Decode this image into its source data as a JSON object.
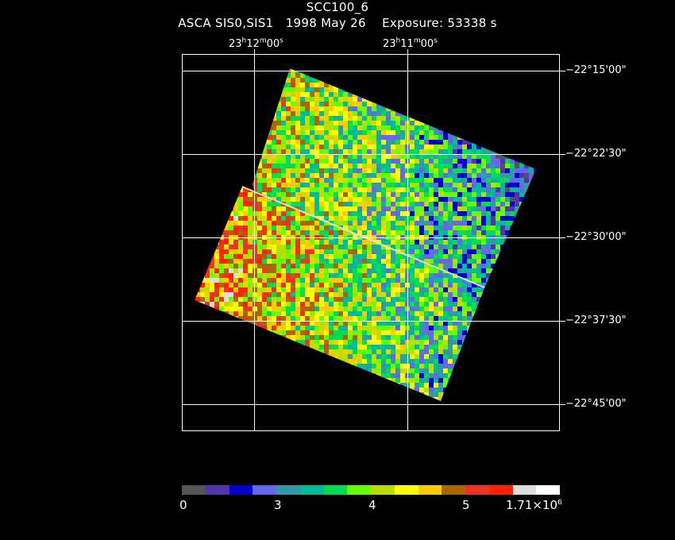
{
  "title": {
    "object": "SCC100_6",
    "instrument": "ASCA SIS0,SIS1",
    "date": "1998 May 26",
    "exposure": "Exposure: 53338 s"
  },
  "ra_ticks": [
    {
      "h": "23",
      "m": "12",
      "s": "00"
    },
    {
      "h": "23",
      "m": "11",
      "s": "00"
    }
  ],
  "dec_ticks": [
    "−22°15'00\"",
    "−22°22'30\"",
    "−22°30'00\"",
    "−22°37'30\"",
    "−22°45'00\""
  ],
  "colorbar": {
    "colors": [
      "#555555",
      "#5533aa",
      "#0000cc",
      "#6666ee",
      "#3399aa",
      "#00bb99",
      "#00dd55",
      "#66ff00",
      "#bbdd00",
      "#ffff00",
      "#ffcc00",
      "#aa6600",
      "#ee3322",
      "#ff2200",
      "#dddddd",
      "#ffffff"
    ],
    "labels": [
      "0",
      "3",
      "4",
      "5",
      "1.71×10"
    ],
    "exponent": "6"
  },
  "image_palette": [
    "#555555",
    "#5533aa",
    "#0000cc",
    "#6666ee",
    "#3399aa",
    "#00bb99",
    "#00dd55",
    "#66ff00",
    "#bbdd00",
    "#ffff00",
    "#ffcc00",
    "#aa6600",
    "#ee3322",
    "#ff2200",
    "#dddddd",
    "#ffffff"
  ]
}
